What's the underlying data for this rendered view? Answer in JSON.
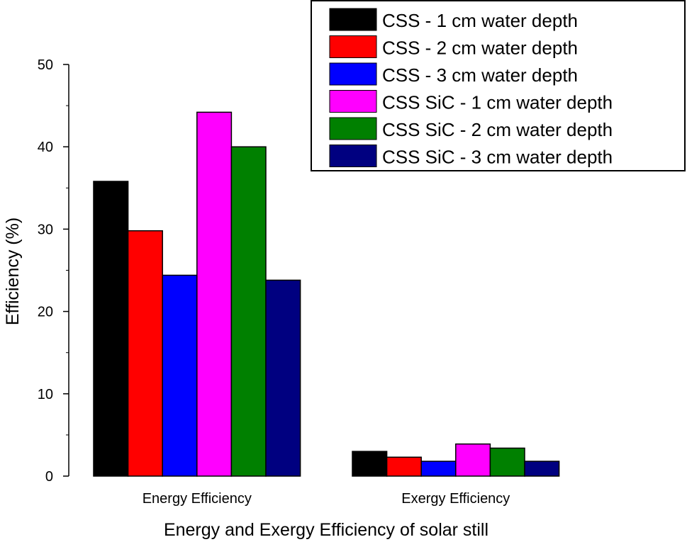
{
  "chart_data": {
    "type": "bar",
    "title": "",
    "xlabel": "Energy and Exergy Efficiency of solar still",
    "ylabel": "Efficiency (%)",
    "ylim": [
      0,
      50
    ],
    "yticks": [
      "0",
      "10",
      "20",
      "30",
      "40",
      "50"
    ],
    "categories": [
      "Energy Efficiency",
      "Exergy Efficiency"
    ],
    "series": [
      {
        "name": "CSS - 1 cm water depth",
        "color": "#000000",
        "values": [
          35.8,
          3.0
        ]
      },
      {
        "name": "CSS - 2 cm water depth",
        "color": "#ff0000",
        "values": [
          29.8,
          2.3
        ]
      },
      {
        "name": "CSS - 3 cm water depth",
        "color": "#0000ff",
        "values": [
          24.4,
          1.8
        ]
      },
      {
        "name": "CSS SiC - 1 cm water depth",
        "color": "#ff00ff",
        "values": [
          44.2,
          3.9
        ]
      },
      {
        "name": "CSS SiC - 2 cm water depth",
        "color": "#008000",
        "values": [
          40.0,
          3.4
        ]
      },
      {
        "name": "CSS SiC - 3 cm water depth",
        "color": "#000080",
        "values": [
          23.8,
          1.8
        ]
      }
    ],
    "legend": "top-right",
    "grid": false
  }
}
